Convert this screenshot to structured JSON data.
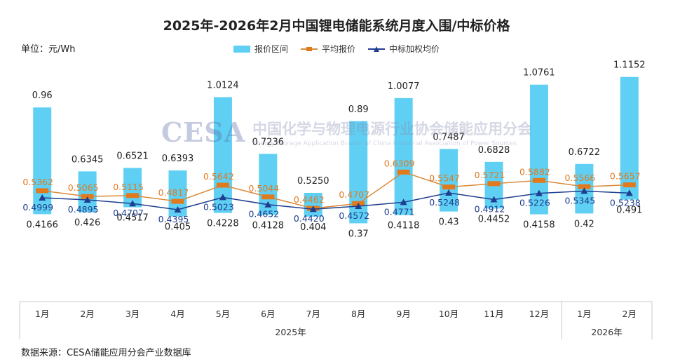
{
  "title": "2025年-2026年2月中国锂电储能系统月度入围/中标价格",
  "unit_label": "单位：元/Wh",
  "source_label": "数据来源：CESA储能应用分会产业数据库",
  "watermark": {
    "logo": "CESA",
    "cn": "中国化学与物理电源行业协会储能应用分会",
    "en": "Energy Storage Application Branch of China Industrial Association of Power Sources"
  },
  "colors": {
    "range": "#5fd0f3",
    "avg": "#e07a1f",
    "avg_line": "#d98a3a",
    "weighted": "#1f3e8f"
  },
  "chart_data": {
    "type": "bar",
    "title": "2025年-2026年2月中国锂电储能系统月度入围/中标价格",
    "ylabel": "元/Wh",
    "ylim": [
      0.2,
      1.2
    ],
    "categories": [
      "1月",
      "2月",
      "3月",
      "4月",
      "5月",
      "6月",
      "7月",
      "8月",
      "9月",
      "10月",
      "11月",
      "12月",
      "1月",
      "2月"
    ],
    "groups": [
      {
        "label": "2025年",
        "start": 0,
        "end": 11
      },
      {
        "label": "2026年",
        "start": 12,
        "end": 13
      }
    ],
    "series": [
      {
        "name": "报价区间",
        "kind": "range",
        "max": [
          0.96,
          0.6345,
          0.6521,
          0.6393,
          1.0124,
          0.7236,
          0.525,
          0.89,
          1.0077,
          0.7487,
          0.6828,
          1.0761,
          0.6722,
          1.1152
        ],
        "max_labels": [
          "0.96",
          "0.6345",
          "0.6521",
          "0.6393",
          "1.0124",
          "0.7236",
          "0.5250",
          "0.89",
          "1.0077",
          "0.7487",
          "0.6828",
          "1.0761",
          "0.6722",
          "1.1152"
        ],
        "min": [
          0.4166,
          0.426,
          0.4517,
          0.405,
          0.4228,
          0.4128,
          0.404,
          0.37,
          0.4118,
          0.43,
          0.4452,
          0.4158,
          0.42,
          0.491
        ],
        "min_labels": [
          "0.4166",
          "0.426",
          "0.4517",
          "0.405",
          "0.4228",
          "0.4128",
          "0.404",
          "0.37",
          "0.4118",
          "0.43",
          "0.4452",
          "0.4158",
          "0.42",
          "0.491"
        ]
      },
      {
        "name": "平均报价",
        "kind": "line",
        "values": [
          0.5362,
          0.5065,
          0.5115,
          0.4817,
          0.5642,
          0.5044,
          0.4462,
          0.4707,
          0.6309,
          0.5547,
          0.5721,
          0.5882,
          0.5566,
          0.5657
        ],
        "labels": [
          "0.5362",
          "0.5065",
          "0.5115",
          "0.4817",
          "0.5642",
          "0.5044",
          "0.4462",
          "0.4707",
          "0.6309",
          "0.5547",
          "0.5721",
          "0.5882",
          "0.5566",
          "0.5657"
        ]
      },
      {
        "name": "中标加权均价",
        "kind": "line",
        "values": [
          0.4999,
          0.4895,
          0.4707,
          0.4395,
          0.5023,
          0.4652,
          0.442,
          0.4572,
          0.4771,
          0.5248,
          0.4912,
          0.5226,
          0.5345,
          0.5238
        ],
        "labels": [
          "0.4999",
          "0.4895",
          "0.4707",
          "0.4395",
          "0.5023",
          "0.4652",
          "0.4420",
          "0.4572",
          "0.4771",
          "0.5248",
          "0.4912",
          "0.5226",
          "0.5345",
          "0.5238"
        ]
      }
    ]
  }
}
